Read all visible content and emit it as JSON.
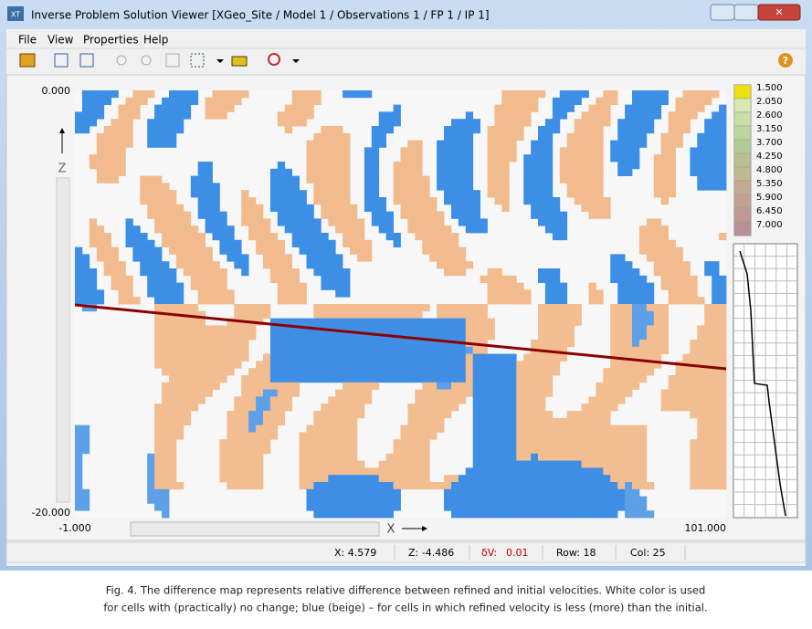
{
  "window": {
    "title": "Inverse Problem Solution Viewer  [XGeo_Site / Model 1 / Observations 1 / FP 1 / IP 1]",
    "icon": "XT"
  },
  "menu": [
    "File",
    "View",
    "Properties",
    "Help"
  ],
  "map": {
    "z_top": "0.000",
    "z_bottom": "-20.000",
    "x_left": "-1.000",
    "x_right": "101.000",
    "z_label": "Z",
    "x_label": "X"
  },
  "legend": [
    "1.500",
    "2.050",
    "2.600",
    "3.150",
    "3.700",
    "4.250",
    "4.800",
    "5.350",
    "5.900",
    "6.450",
    "7.000"
  ],
  "status": {
    "x": "X: 4.579",
    "z": "Z: -4.486",
    "dv_label": "δV:",
    "dv_value": "0.01",
    "row": "Row: 18",
    "col": "Col: 25"
  },
  "caption": [
    "Fig. 4. The difference map represents relative difference between refined and initial velocities. White color is used",
    "for cells with (practically) no change; blue (beige) – for cells in which refined velocity is less (more) than the initial."
  ]
}
